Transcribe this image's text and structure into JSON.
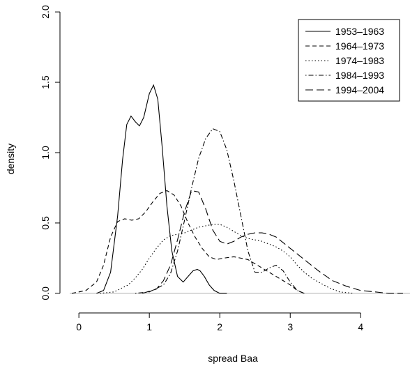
{
  "chart_data": {
    "type": "line",
    "title": "",
    "xlabel": "spread Baa",
    "ylabel": "density",
    "xlim": [
      -0.13,
      4.7
    ],
    "ylim": [
      -0.07,
      2.06
    ],
    "xticks": [
      "0",
      "1",
      "2",
      "3",
      "4"
    ],
    "yticks": [
      "0.0",
      "0.5",
      "1.0",
      "1.5",
      "2.0"
    ],
    "grid": false,
    "baseline": {
      "y": 0,
      "color": "#b0b0b0"
    },
    "legend": {
      "position": "top-right"
    },
    "series": [
      {
        "name": "1953–1963",
        "dash": "solid",
        "x": [
          0.25,
          0.35,
          0.45,
          0.55,
          0.62,
          0.68,
          0.74,
          0.8,
          0.86,
          0.92,
          1.0,
          1.06,
          1.12,
          1.18,
          1.25,
          1.32,
          1.4,
          1.48,
          1.55,
          1.62,
          1.68,
          1.72,
          1.78,
          1.85,
          1.92,
          2.0,
          2.1
        ],
        "y": [
          0.0,
          0.02,
          0.15,
          0.55,
          0.95,
          1.2,
          1.26,
          1.22,
          1.19,
          1.25,
          1.42,
          1.48,
          1.38,
          1.05,
          0.62,
          0.3,
          0.12,
          0.08,
          0.12,
          0.16,
          0.17,
          0.16,
          0.12,
          0.06,
          0.02,
          0.0,
          0.0
        ]
      },
      {
        "name": "1964–1973",
        "dash": "short",
        "x": [
          -0.1,
          0.1,
          0.25,
          0.35,
          0.45,
          0.55,
          0.65,
          0.75,
          0.85,
          0.95,
          1.05,
          1.15,
          1.25,
          1.35,
          1.45,
          1.55,
          1.65,
          1.75,
          1.85,
          1.95,
          2.05,
          2.2,
          2.4,
          2.6,
          2.8,
          3.0,
          3.1,
          3.2
        ],
        "y": [
          0.0,
          0.02,
          0.08,
          0.2,
          0.4,
          0.51,
          0.53,
          0.52,
          0.53,
          0.58,
          0.65,
          0.71,
          0.73,
          0.7,
          0.62,
          0.5,
          0.4,
          0.32,
          0.26,
          0.24,
          0.25,
          0.26,
          0.24,
          0.18,
          0.12,
          0.06,
          0.02,
          0.0
        ]
      },
      {
        "name": "1974–1983",
        "dash": "dotted",
        "x": [
          0.3,
          0.5,
          0.7,
          0.8,
          0.9,
          1.0,
          1.1,
          1.2,
          1.3,
          1.4,
          1.5,
          1.6,
          1.7,
          1.8,
          1.9,
          2.0,
          2.1,
          2.2,
          2.3,
          2.4,
          2.5,
          2.6,
          2.7,
          2.8,
          2.9,
          3.0,
          3.1,
          3.2,
          3.3,
          3.4,
          3.55,
          3.7,
          3.9
        ],
        "y": [
          0.0,
          0.01,
          0.06,
          0.11,
          0.17,
          0.25,
          0.32,
          0.38,
          0.41,
          0.42,
          0.43,
          0.45,
          0.47,
          0.48,
          0.49,
          0.49,
          0.47,
          0.44,
          0.41,
          0.39,
          0.38,
          0.37,
          0.35,
          0.33,
          0.3,
          0.26,
          0.2,
          0.15,
          0.11,
          0.08,
          0.04,
          0.01,
          0.0
        ]
      },
      {
        "name": "1984–1993",
        "dash": "dotdash",
        "x": [
          0.8,
          1.0,
          1.2,
          1.3,
          1.4,
          1.5,
          1.6,
          1.7,
          1.8,
          1.9,
          2.0,
          2.1,
          2.2,
          2.3,
          2.4,
          2.5,
          2.6,
          2.7,
          2.8,
          2.9,
          3.0,
          3.1,
          3.2
        ],
        "y": [
          0.0,
          0.01,
          0.06,
          0.14,
          0.3,
          0.52,
          0.75,
          0.96,
          1.1,
          1.17,
          1.15,
          1.02,
          0.8,
          0.55,
          0.3,
          0.15,
          0.15,
          0.18,
          0.2,
          0.16,
          0.08,
          0.02,
          0.0
        ]
      },
      {
        "name": "1994–2004",
        "dash": "longdash",
        "x": [
          0.9,
          1.1,
          1.2,
          1.3,
          1.4,
          1.5,
          1.6,
          1.7,
          1.8,
          1.9,
          2.0,
          2.1,
          2.2,
          2.3,
          2.4,
          2.5,
          2.6,
          2.7,
          2.8,
          2.9,
          3.0,
          3.2,
          3.4,
          3.6,
          3.8,
          4.0,
          4.2,
          4.4,
          4.6
        ],
        "y": [
          0.0,
          0.03,
          0.09,
          0.2,
          0.38,
          0.58,
          0.73,
          0.72,
          0.6,
          0.45,
          0.37,
          0.35,
          0.37,
          0.4,
          0.42,
          0.43,
          0.43,
          0.42,
          0.4,
          0.36,
          0.32,
          0.24,
          0.16,
          0.09,
          0.05,
          0.02,
          0.01,
          0.0,
          0.0
        ]
      }
    ]
  }
}
